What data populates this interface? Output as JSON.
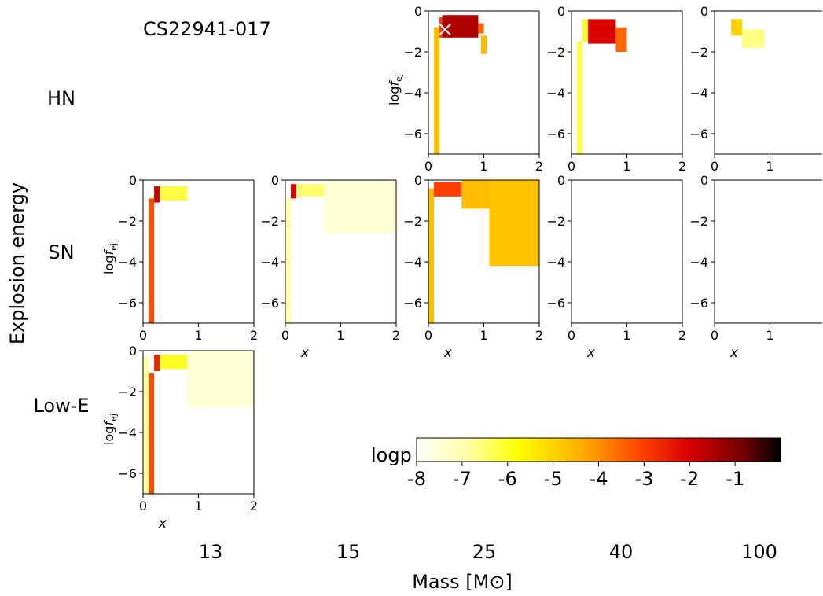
{
  "star_name": "CS22941-017",
  "ylabel_main": "Explosion energy",
  "xlabel_main": "Mass [M⊙]",
  "rows": [
    {
      "label": "HN"
    },
    {
      "label": "SN"
    },
    {
      "label": "Low-E"
    }
  ],
  "masses": [
    "13",
    "15",
    "25",
    "40",
    "100"
  ],
  "colorbar": {
    "label": "logp",
    "ticks": [
      "-8",
      "-7",
      "-6",
      "-5",
      "-4",
      "-3",
      "-2",
      "-1"
    ],
    "range": [
      -8,
      0
    ],
    "colormap": "hot_r"
  },
  "chart_data": {
    "type": "heatmap",
    "xlabel": "x",
    "ylabel": "logf_ej",
    "xlim": [
      0,
      2
    ],
    "ylim": [
      -7,
      0
    ],
    "xticks": [
      "0",
      "1",
      "2"
    ],
    "yticks": [
      "0",
      "-2",
      "-4",
      "-6"
    ],
    "best_fit_marker": {
      "row": "HN",
      "mass": "25",
      "x": 0.3,
      "logf_ej": -0.9
    },
    "panels": [
      {
        "row": "HN",
        "mass": "25",
        "present": true,
        "regions": [
          {
            "x": [
              0.1,
              0.2
            ],
            "y": [
              -7,
              -0.8
            ],
            "logp": -4.6
          },
          {
            "x": [
              0.2,
              0.25
            ],
            "y": [
              -1.3,
              -0.3
            ],
            "logp": -3.0
          },
          {
            "x": [
              0.25,
              0.9
            ],
            "y": [
              -1.3,
              -0.2
            ],
            "logp": -1.5
          },
          {
            "x": [
              0.9,
              1.0
            ],
            "y": [
              -1.1,
              -0.6
            ],
            "logp": -3.5
          },
          {
            "x": [
              0.95,
              1.05
            ],
            "y": [
              -2.1,
              -1.2
            ],
            "logp": -4.5
          }
        ]
      },
      {
        "row": "HN",
        "mass": "40",
        "present": true,
        "regions": [
          {
            "x": [
              0.1,
              0.2
            ],
            "y": [
              -7,
              -1.5
            ],
            "logp": -6.2
          },
          {
            "x": [
              0.2,
              0.3
            ],
            "y": [
              -1.5,
              -0.4
            ],
            "logp": -6.0
          },
          {
            "x": [
              0.3,
              0.8
            ],
            "y": [
              -1.6,
              -0.4
            ],
            "logp": -2.0
          },
          {
            "x": [
              0.8,
              1.0
            ],
            "y": [
              -2.0,
              -0.8
            ],
            "logp": -3.5
          }
        ]
      },
      {
        "row": "HN",
        "mass": "100",
        "present": true,
        "regions": [
          {
            "x": [
              0.3,
              0.5
            ],
            "y": [
              -1.2,
              -0.4
            ],
            "logp": -5.0
          },
          {
            "x": [
              0.5,
              0.9
            ],
            "y": [
              -1.8,
              -0.9
            ],
            "logp": -6.6
          }
        ]
      },
      {
        "row": "SN",
        "mass": "13",
        "present": true,
        "regions": [
          {
            "x": [
              0.1,
              0.2
            ],
            "y": [
              -7,
              -0.9
            ],
            "logp": -3.2
          },
          {
            "x": [
              0.2,
              0.3
            ],
            "y": [
              -1.1,
              -0.3
            ],
            "logp": -1.8
          },
          {
            "x": [
              0.3,
              0.8
            ],
            "y": [
              -1.0,
              -0.3
            ],
            "logp": -6.2
          }
        ]
      },
      {
        "row": "SN",
        "mass": "15",
        "present": true,
        "regions": [
          {
            "x": [
              0.0,
              0.1
            ],
            "y": [
              -7,
              -0.9
            ],
            "logp": -7.0
          },
          {
            "x": [
              0.1,
              0.2
            ],
            "y": [
              -0.9,
              -0.2
            ],
            "logp": -2.0
          },
          {
            "x": [
              0.2,
              0.7
            ],
            "y": [
              -0.8,
              -0.2
            ],
            "logp": -6.5
          },
          {
            "x": [
              0.7,
              2.0
            ],
            "y": [
              -2.6,
              0.0
            ],
            "logp": -7.5
          }
        ]
      },
      {
        "row": "SN",
        "mass": "25",
        "present": true,
        "regions": [
          {
            "x": [
              0.0,
              0.1
            ],
            "y": [
              -7,
              -0.4
            ],
            "logp": -4.6
          },
          {
            "x": [
              0.1,
              0.6
            ],
            "y": [
              -0.8,
              -0.1
            ],
            "logp": -3.0
          },
          {
            "x": [
              0.6,
              1.1
            ],
            "y": [
              -1.4,
              0.0
            ],
            "logp": -4.6
          },
          {
            "x": [
              1.1,
              2.0
            ],
            "y": [
              -4.2,
              0.0
            ],
            "logp": -4.7
          }
        ]
      },
      {
        "row": "SN",
        "mass": "40",
        "present": true,
        "regions": []
      },
      {
        "row": "SN",
        "mass": "100",
        "present": true,
        "regions": []
      },
      {
        "row": "Low-E",
        "mass": "13",
        "present": true,
        "regions": [
          {
            "x": [
              0.0,
              0.1
            ],
            "y": [
              -7,
              -0.3
            ],
            "logp": -6.8
          },
          {
            "x": [
              0.1,
              0.2
            ],
            "y": [
              -7,
              -1.1
            ],
            "logp": -3.2
          },
          {
            "x": [
              0.2,
              0.3
            ],
            "y": [
              -1.0,
              -0.2
            ],
            "logp": -2.5
          },
          {
            "x": [
              0.3,
              0.8
            ],
            "y": [
              -0.9,
              -0.2
            ],
            "logp": -6.0
          },
          {
            "x": [
              0.8,
              2.0
            ],
            "y": [
              -2.8,
              0.0
            ],
            "logp": -7.5
          }
        ]
      }
    ]
  }
}
